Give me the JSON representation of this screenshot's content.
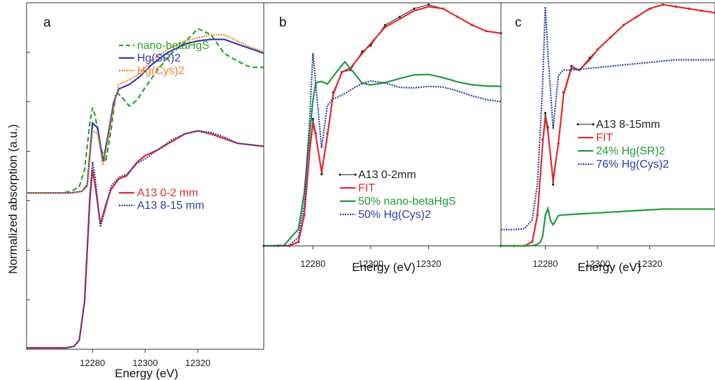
{
  "figure": {
    "ylabel": "Normalized absorption (a.u.)"
  },
  "chart_data": [
    {
      "type": "line",
      "panel": "a",
      "xlabel": "Energy (eV)",
      "ylabel": "Normalized absorption (a.u.)",
      "xlim": [
        12255,
        12345
      ],
      "ylim": [
        -0.1,
        2.2
      ],
      "xticks": [
        12280,
        12300,
        12320
      ],
      "legend_groups": [
        {
          "position": "upper-right",
          "entries": [
            "nano-betaHgS",
            "Hg(SR)2",
            "Hg(Cys)2"
          ]
        },
        {
          "position": "middle-right",
          "entries": [
            "A13 0-2 mm",
            "A13 8-15 mm"
          ]
        }
      ],
      "series": [
        {
          "name": "nano-betaHgS",
          "color": "#2ca02c",
          "style": "dashed",
          "offset": 1.0,
          "x": [
            12255,
            12262,
            12268,
            12272,
            12275,
            12277,
            12279,
            12280,
            12281,
            12283,
            12285,
            12287,
            12289,
            12291,
            12294,
            12297,
            12300,
            12305,
            12310,
            12315,
            12320,
            12325,
            12330,
            12335,
            12340,
            12345
          ],
          "y": [
            1.0,
            1.0,
            1.0,
            1.01,
            1.04,
            1.15,
            1.45,
            1.55,
            1.5,
            1.3,
            1.2,
            1.4,
            1.65,
            1.62,
            1.56,
            1.6,
            1.68,
            1.8,
            1.9,
            1.97,
            2.06,
            2.02,
            1.9,
            1.85,
            1.81,
            1.81
          ]
        },
        {
          "name": "Hg(SR)2",
          "color": "#2b3ea8",
          "style": "solid",
          "offset": 1.0,
          "x": [
            12255,
            12265,
            12272,
            12276,
            12278,
            12280,
            12282,
            12284,
            12286,
            12288,
            12290,
            12294,
            12298,
            12302,
            12308,
            12315,
            12320,
            12325,
            12330,
            12335,
            12340,
            12345
          ],
          "y": [
            1.0,
            1.0,
            1.0,
            1.01,
            1.05,
            1.45,
            1.42,
            1.2,
            1.38,
            1.58,
            1.67,
            1.7,
            1.75,
            1.82,
            1.9,
            1.96,
            1.98,
            1.99,
            1.99,
            1.96,
            1.93,
            1.9
          ]
        },
        {
          "name": "Hg(Cys)2",
          "color": "#ef7f2a",
          "style": "dotted",
          "offset": 1.0,
          "x": [
            12255,
            12265,
            12272,
            12276,
            12278,
            12280,
            12282,
            12284,
            12286,
            12288,
            12290,
            12294,
            12298,
            12302,
            12308,
            12315,
            12320,
            12325,
            12330,
            12335,
            12340,
            12345
          ],
          "y": [
            1.0,
            1.0,
            1.0,
            1.01,
            1.04,
            1.4,
            1.38,
            1.18,
            1.35,
            1.55,
            1.7,
            1.73,
            1.77,
            1.85,
            1.92,
            1.98,
            2.0,
            2.02,
            2.02,
            1.98,
            1.94,
            1.91
          ]
        },
        {
          "name": "A13 0-2 mm",
          "color": "#e8262b",
          "style": "solid",
          "offset": 0.0,
          "x": [
            12255,
            12265,
            12270,
            12273,
            12275,
            12277,
            12279,
            12280,
            12281,
            12283,
            12285,
            12287,
            12290,
            12293,
            12297,
            12300,
            12305,
            12310,
            12315,
            12320,
            12325,
            12330,
            12335,
            12340,
            12345
          ],
          "y": [
            0.0,
            0.0,
            0.0,
            0.01,
            0.05,
            0.3,
            0.95,
            1.15,
            1.05,
            0.8,
            0.92,
            1.02,
            1.09,
            1.11,
            1.2,
            1.24,
            1.28,
            1.33,
            1.38,
            1.4,
            1.38,
            1.35,
            1.32,
            1.31,
            1.3
          ]
        },
        {
          "name": "A13 8-15 mm",
          "color": "#2b3ea8",
          "style": "dotted",
          "offset": 0.0,
          "x": [
            12255,
            12265,
            12270,
            12273,
            12275,
            12277,
            12279,
            12280,
            12281,
            12283,
            12285,
            12287,
            12290,
            12293,
            12297,
            12300,
            12305,
            12310,
            12315,
            12320,
            12325,
            12330,
            12335,
            12340,
            12345
          ],
          "y": [
            0.0,
            0.0,
            0.0,
            0.01,
            0.05,
            0.3,
            0.98,
            1.2,
            1.1,
            0.78,
            0.9,
            1.04,
            1.1,
            1.12,
            1.19,
            1.22,
            1.28,
            1.34,
            1.38,
            1.4,
            1.39,
            1.36,
            1.32,
            1.31,
            1.3
          ]
        }
      ]
    },
    {
      "type": "line",
      "panel": "b",
      "xlabel": "Energy (eV)",
      "xlim": [
        12263,
        12345
      ],
      "ylim": [
        -0.1,
        2.2
      ],
      "xticks": [
        12280,
        12300,
        12320
      ],
      "legend_groups": [
        {
          "position": "lower-right",
          "entries": [
            "A13 0-2mm",
            "FIT",
            "50% nano-betaHgS",
            "50% Hg(Cys)2"
          ]
        }
      ],
      "series": [
        {
          "name": "A13 0-2mm",
          "color": "#222222",
          "style": "line-marker",
          "x": [
            12263,
            12268,
            12272,
            12275,
            12277,
            12279,
            12280,
            12281,
            12283,
            12285,
            12287,
            12290,
            12293,
            12297,
            12300,
            12305,
            12310,
            12315,
            12320,
            12325,
            12330,
            12335,
            12340,
            12345
          ],
          "y": [
            1.0,
            1.0,
            1.0,
            1.02,
            1.15,
            1.5,
            1.62,
            1.55,
            1.35,
            1.55,
            1.75,
            1.85,
            1.86,
            1.95,
            1.98,
            2.08,
            2.12,
            2.16,
            2.18,
            2.16,
            2.12,
            2.08,
            2.05,
            2.04
          ]
        },
        {
          "name": "FIT",
          "color": "#e8262b",
          "style": "solid",
          "x": [
            12263,
            12268,
            12272,
            12275,
            12277,
            12279,
            12280,
            12281,
            12283,
            12285,
            12287,
            12290,
            12293,
            12297,
            12300,
            12305,
            12310,
            12315,
            12320,
            12325,
            12330,
            12335,
            12340,
            12345
          ],
          "y": [
            1.0,
            1.0,
            1.0,
            1.02,
            1.15,
            1.48,
            1.6,
            1.54,
            1.36,
            1.54,
            1.74,
            1.85,
            1.87,
            1.94,
            1.99,
            2.07,
            2.11,
            2.15,
            2.17,
            2.16,
            2.12,
            2.08,
            2.05,
            2.04
          ]
        },
        {
          "name": "50% nano-betaHgS",
          "color": "#1f9a3a",
          "style": "solid",
          "x": [
            12263,
            12270,
            12275,
            12277,
            12279,
            12280,
            12281,
            12283,
            12285,
            12288,
            12291,
            12294,
            12297,
            12300,
            12305,
            12310,
            12315,
            12320,
            12325,
            12330,
            12335,
            12340,
            12345
          ],
          "y": [
            1.0,
            1.0,
            1.0,
            1.0,
            1.0,
            1.0,
            1.0,
            1.0,
            1.0,
            1.0,
            1.0,
            1.0,
            1.0,
            1.0,
            1.0,
            1.0,
            1.0,
            1.0,
            1.0,
            1.0,
            1.0,
            1.0,
            1.0
          ]
        },
        {
          "name": "50% Hg(Cys)2",
          "color": "#2b3ea8",
          "style": "dotted",
          "x": [
            12263,
            12268,
            12272,
            12275,
            12277,
            12279,
            12280,
            12281,
            12283,
            12285,
            12287,
            12290,
            12293,
            12297,
            12300,
            12305,
            12310,
            12315,
            12320,
            12325,
            12330,
            12335,
            12340,
            12345
          ],
          "y": [
            1.0,
            1.0,
            1.0,
            1.0,
            1.0,
            1.0,
            1.0,
            1.0,
            1.0,
            1.0,
            1.0,
            1.0,
            1.0,
            1.0,
            1.0,
            1.0,
            1.0,
            1.0,
            1.0,
            1.0,
            1.0,
            1.0,
            1.0,
            1.0
          ]
        }
      ]
    },
    {
      "type": "line",
      "panel": "c",
      "xlabel": "Energy (eV)",
      "xlim": [
        12263,
        12345
      ],
      "ylim": [
        -0.1,
        2.2
      ],
      "xticks": [
        12280,
        12300,
        12320
      ],
      "legend_groups": [
        {
          "position": "middle-right",
          "entries": [
            "A13  8-15mm",
            "FIT",
            "24% Hg(SR)2",
            "76% Hg(Cys)2"
          ]
        }
      ],
      "series": [
        {
          "name": "A13  8-15mm",
          "color": "#222222",
          "style": "line-marker",
          "x": [
            12263,
            12268,
            12272,
            12275,
            12277,
            12279,
            12280,
            12281,
            12283,
            12285,
            12287,
            12290,
            12293,
            12297,
            12300,
            12305,
            12310,
            12315,
            12320,
            12325,
            12330,
            12335,
            12340,
            12345
          ],
          "y": [
            1.0,
            1.0,
            1.0,
            1.02,
            1.15,
            1.52,
            1.65,
            1.58,
            1.3,
            1.5,
            1.75,
            1.88,
            1.86,
            1.92,
            1.96,
            2.02,
            2.08,
            2.12,
            2.16,
            2.18,
            2.17,
            2.16,
            2.15,
            2.14
          ]
        },
        {
          "name": "FIT",
          "color": "#e8262b",
          "style": "solid",
          "x": [
            12263,
            12268,
            12272,
            12275,
            12277,
            12279,
            12280,
            12281,
            12283,
            12285,
            12287,
            12290,
            12293,
            12297,
            12300,
            12305,
            12310,
            12315,
            12320,
            12325,
            12330,
            12335,
            12340,
            12345
          ],
          "y": [
            1.0,
            1.0,
            1.0,
            1.02,
            1.15,
            1.5,
            1.63,
            1.56,
            1.32,
            1.5,
            1.74,
            1.87,
            1.86,
            1.91,
            1.96,
            2.02,
            2.08,
            2.12,
            2.16,
            2.18,
            2.17,
            2.16,
            2.15,
            2.14
          ]
        },
        {
          "name": "24% Hg(SR)2",
          "color": "#1f9a3a",
          "style": "solid",
          "x": [
            12263,
            12270,
            12275,
            12277,
            12278,
            12279,
            12280,
            12281,
            12282,
            12283,
            12285,
            12287,
            12290,
            12295,
            12300,
            12305,
            12310,
            12315,
            12320,
            12325,
            12330,
            12335,
            12340,
            12345
          ],
          "y": [
            1.0,
            1.0,
            1.0,
            1.0,
            1.0,
            1.0,
            1.0,
            1.0,
            1.0,
            1.0,
            1.0,
            1.0,
            1.0,
            1.0,
            1.0,
            1.0,
            1.0,
            1.0,
            1.0,
            1.0,
            1.0,
            1.0,
            1.0,
            1.0
          ]
        },
        {
          "name": "76% Hg(Cys)2",
          "color": "#2b3ea8",
          "style": "dotted",
          "x": [
            12263,
            12268,
            12272,
            12275,
            12277,
            12279,
            12280,
            12281,
            12283,
            12285,
            12287,
            12290,
            12293,
            12297,
            12300,
            12305,
            12310,
            12315,
            12320,
            12325,
            12330,
            12335,
            12340,
            12345
          ],
          "y": [
            1.0,
            1.0,
            1.0,
            1.0,
            1.0,
            1.0,
            1.0,
            1.0,
            1.0,
            1.0,
            1.0,
            1.0,
            1.0,
            1.0,
            1.0,
            1.0,
            1.0,
            1.0,
            1.0,
            1.0,
            1.0,
            1.0,
            1.0,
            1.0
          ]
        }
      ]
    }
  ]
}
